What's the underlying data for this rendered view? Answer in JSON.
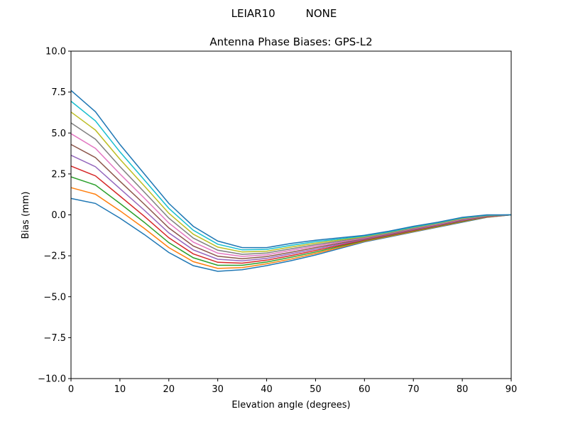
{
  "suptitle": "LEIAR10         NONE",
  "chart_data": {
    "type": "line",
    "title": "Antenna Phase Biases: GPS-L2",
    "xlabel": "Elevation angle (degrees)",
    "ylabel": "Bias (mm)",
    "xlim": [
      0,
      90
    ],
    "ylim": [
      -10,
      10
    ],
    "xticks": [
      0,
      10,
      20,
      30,
      40,
      50,
      60,
      70,
      80,
      90
    ],
    "xtick_labels": [
      "0",
      "10",
      "20",
      "30",
      "40",
      "50",
      "60",
      "70",
      "80",
      "90"
    ],
    "yticks": [
      -10,
      -7.5,
      -5,
      -2.5,
      0,
      2.5,
      5,
      7.5,
      10
    ],
    "ytick_labels": [
      "−10.0",
      "−7.5",
      "−5.0",
      "−2.5",
      "0.0",
      "2.5",
      "5.0",
      "7.5",
      "10.0"
    ],
    "grid": false,
    "legend": "none",
    "colors": [
      "#1f77b4",
      "#ff7f0e",
      "#2ca02c",
      "#d62728",
      "#9467bd",
      "#8c564b",
      "#e377c2",
      "#7f7f7f",
      "#bcbd22",
      "#17becf"
    ],
    "x": [
      0,
      5,
      10,
      15,
      20,
      25,
      30,
      35,
      40,
      45,
      50,
      55,
      60,
      65,
      70,
      75,
      80,
      85,
      90
    ],
    "series": [
      {
        "values": [
          1.0,
          0.7,
          -0.2,
          -1.2,
          -2.3,
          -3.1,
          -3.45,
          -3.35,
          -3.1,
          -2.8,
          -2.45,
          -2.05,
          -1.65,
          -1.35,
          -1.05,
          -0.75,
          -0.45,
          -0.15,
          0
        ]
      },
      {
        "values": [
          1.66,
          1.26,
          0.25,
          -0.83,
          -2.0,
          -2.86,
          -3.27,
          -3.22,
          -2.99,
          -2.7,
          -2.36,
          -1.99,
          -1.61,
          -1.32,
          -1.02,
          -0.72,
          -0.42,
          -0.14,
          0
        ]
      },
      {
        "values": [
          2.32,
          1.82,
          0.7,
          -0.46,
          -1.7,
          -2.62,
          -3.08,
          -3.08,
          -2.88,
          -2.59,
          -2.27,
          -1.92,
          -1.57,
          -1.28,
          -0.98,
          -0.69,
          -0.39,
          -0.12,
          0
        ]
      },
      {
        "values": [
          2.98,
          2.38,
          1.15,
          -0.09,
          -1.4,
          -2.38,
          -2.9,
          -2.95,
          -2.77,
          -2.49,
          -2.18,
          -1.86,
          -1.53,
          -1.25,
          -0.95,
          -0.66,
          -0.36,
          -0.11,
          0
        ]
      },
      {
        "values": [
          3.64,
          2.94,
          1.6,
          0.28,
          -1.1,
          -2.14,
          -2.71,
          -2.81,
          -2.66,
          -2.38,
          -2.09,
          -1.79,
          -1.49,
          -1.21,
          -0.91,
          -0.63,
          -0.33,
          -0.09,
          0
        ]
      },
      {
        "values": [
          4.3,
          3.5,
          2.05,
          0.65,
          -0.8,
          -1.9,
          -2.53,
          -2.68,
          -2.55,
          -2.28,
          -2.0,
          -1.73,
          -1.45,
          -1.18,
          -0.88,
          -0.6,
          -0.3,
          -0.08,
          0
        ]
      },
      {
        "values": [
          4.96,
          4.06,
          2.5,
          1.02,
          -0.5,
          -1.66,
          -2.34,
          -2.54,
          -2.44,
          -2.17,
          -1.91,
          -1.66,
          -1.41,
          -1.14,
          -0.84,
          -0.57,
          -0.27,
          -0.06,
          0
        ]
      },
      {
        "values": [
          5.62,
          4.62,
          2.95,
          1.39,
          -0.2,
          -1.42,
          -2.16,
          -2.41,
          -2.33,
          -2.07,
          -1.82,
          -1.6,
          -1.37,
          -1.11,
          -0.81,
          -0.54,
          -0.24,
          -0.05,
          0
        ]
      },
      {
        "values": [
          6.28,
          5.18,
          3.4,
          1.76,
          0.1,
          -1.18,
          -1.97,
          -2.27,
          -2.22,
          -1.96,
          -1.73,
          -1.53,
          -1.33,
          -1.07,
          -0.77,
          -0.51,
          -0.21,
          -0.03,
          0
        ]
      },
      {
        "values": [
          6.94,
          5.74,
          3.85,
          2.13,
          0.4,
          -0.94,
          -1.79,
          -2.14,
          -2.11,
          -1.86,
          -1.64,
          -1.47,
          -1.29,
          -1.04,
          -0.74,
          -0.48,
          -0.18,
          -0.02,
          0
        ]
      },
      {
        "values": [
          7.6,
          6.3,
          4.3,
          2.5,
          0.7,
          -0.7,
          -1.6,
          -2.0,
          -2.0,
          -1.75,
          -1.55,
          -1.4,
          -1.25,
          -1.0,
          -0.7,
          -0.45,
          -0.15,
          0.0,
          0
        ]
      }
    ]
  }
}
